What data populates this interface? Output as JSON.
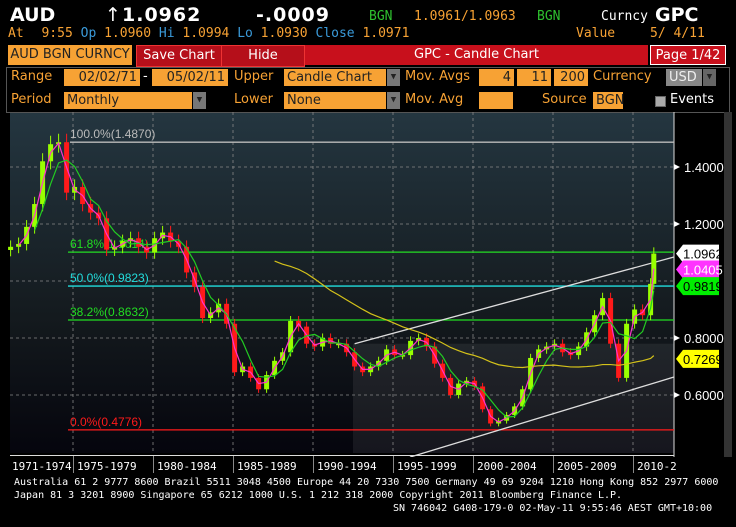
{
  "header": {
    "ticker": "AUD",
    "arrow": "↑",
    "price": "1.0962",
    "change": "-.0009",
    "source": "BGN",
    "bid_ask": "1.0961/1.0963",
    "source2": "BGN",
    "function_prefix": "Curncy",
    "function": "GPC"
  },
  "quote": {
    "at_label": "At",
    "time": "9:55",
    "op_label": "Op",
    "open": "1.0960",
    "hi_label": "Hi",
    "high": "1.0994",
    "lo_label": "Lo",
    "low": "1.0930",
    "close_label": "Close",
    "close": "1.0971",
    "value_label": "Value",
    "value_date": "5/ 4/11"
  },
  "toolbar": {
    "security": "AUD BGN CURNCY",
    "save": "Save Chart",
    "hide": "Hide",
    "title": "GPC - Candle Chart",
    "page": "Page 1/42"
  },
  "controls": {
    "range_label": "Range",
    "range_start": "02/02/71",
    "range_sep": "-",
    "range_end": "05/02/11",
    "upper_label": "Upper",
    "upper_value": "Candle Chart",
    "mov_avgs_label": "Mov. Avgs",
    "mov_avgs": [
      "4",
      "11",
      "200"
    ],
    "currency_label": "Currency",
    "currency": "USD",
    "period_label": "Period",
    "period": "Monthly",
    "lower_label": "Lower",
    "lower_value": "None",
    "mov_avg_label": "Mov. Avg",
    "mov_avg": "",
    "source_label": "Source",
    "source": "BGN",
    "events_label": "Events",
    "events_checked": false
  },
  "chart_data": {
    "type": "candlestick",
    "ylim": [
      0.4,
      1.62
    ],
    "y_ticks": [
      "1.4000",
      "1.2000",
      "0.8000",
      "0.6000"
    ],
    "x_labels": [
      "1971-1974",
      "1975-1979",
      "1980-1984",
      "1985-1989",
      "1990-1994",
      "1995-1999",
      "2000-2004",
      "2005-2009",
      "2010-2"
    ],
    "colors": {
      "up": "#99ff00",
      "down": "#ff1a1a",
      "ma_short": "#ff33cc",
      "ma_mid": "#22cc22",
      "ma_long": "#d4c21a"
    },
    "closes": [
      [
        1971.1,
        1.12
      ],
      [
        1971.6,
        1.13
      ],
      [
        1972.1,
        1.19
      ],
      [
        1972.6,
        1.27
      ],
      [
        1973.1,
        1.42
      ],
      [
        1973.6,
        1.48
      ],
      [
        1974.1,
        1.487
      ],
      [
        1974.6,
        1.31
      ],
      [
        1975.1,
        1.33
      ],
      [
        1975.6,
        1.27
      ],
      [
        1976.1,
        1.24
      ],
      [
        1976.6,
        1.22
      ],
      [
        1977.1,
        1.11
      ],
      [
        1977.6,
        1.12
      ],
      [
        1978.1,
        1.14
      ],
      [
        1978.6,
        1.15
      ],
      [
        1979.1,
        1.12
      ],
      [
        1979.6,
        1.1
      ],
      [
        1980.1,
        1.15
      ],
      [
        1980.6,
        1.17
      ],
      [
        1981.1,
        1.14
      ],
      [
        1981.6,
        1.12
      ],
      [
        1982.1,
        1.03
      ],
      [
        1982.6,
        0.98
      ],
      [
        1983.1,
        0.87
      ],
      [
        1983.6,
        0.89
      ],
      [
        1984.1,
        0.92
      ],
      [
        1984.6,
        0.85
      ],
      [
        1985.1,
        0.68
      ],
      [
        1985.6,
        0.7
      ],
      [
        1986.1,
        0.66
      ],
      [
        1986.6,
        0.62
      ],
      [
        1987.1,
        0.67
      ],
      [
        1987.6,
        0.72
      ],
      [
        1988.1,
        0.75
      ],
      [
        1988.6,
        0.86
      ],
      [
        1989.1,
        0.84
      ],
      [
        1989.6,
        0.78
      ],
      [
        1990.1,
        0.77
      ],
      [
        1990.6,
        0.8
      ],
      [
        1991.1,
        0.78
      ],
      [
        1991.6,
        0.78
      ],
      [
        1992.1,
        0.75
      ],
      [
        1992.6,
        0.7
      ],
      [
        1993.1,
        0.68
      ],
      [
        1993.6,
        0.7
      ],
      [
        1994.1,
        0.72
      ],
      [
        1994.6,
        0.76
      ],
      [
        1995.1,
        0.74
      ],
      [
        1995.6,
        0.74
      ],
      [
        1996.1,
        0.79
      ],
      [
        1996.6,
        0.8
      ],
      [
        1997.1,
        0.77
      ],
      [
        1997.6,
        0.71
      ],
      [
        1998.1,
        0.66
      ],
      [
        1998.6,
        0.6
      ],
      [
        1999.1,
        0.64
      ],
      [
        1999.6,
        0.65
      ],
      [
        2000.1,
        0.63
      ],
      [
        2000.6,
        0.55
      ],
      [
        2001.1,
        0.5
      ],
      [
        2001.6,
        0.51
      ],
      [
        2002.1,
        0.53
      ],
      [
        2002.6,
        0.56
      ],
      [
        2003.1,
        0.62
      ],
      [
        2003.6,
        0.73
      ],
      [
        2004.1,
        0.76
      ],
      [
        2004.6,
        0.77
      ],
      [
        2005.1,
        0.78
      ],
      [
        2005.6,
        0.75
      ],
      [
        2006.1,
        0.74
      ],
      [
        2006.6,
        0.77
      ],
      [
        2007.1,
        0.82
      ],
      [
        2007.6,
        0.88
      ],
      [
        2008.1,
        0.94
      ],
      [
        2008.6,
        0.78
      ],
      [
        2009.1,
        0.66
      ],
      [
        2009.6,
        0.85
      ],
      [
        2010.1,
        0.9
      ],
      [
        2010.6,
        0.88
      ],
      [
        2011.1,
        0.99
      ],
      [
        2011.3,
        1.0962
      ]
    ],
    "fib_levels": [
      {
        "label": "100.0%(1.4870)",
        "value": 1.487,
        "color": "#bbbbbb"
      },
      {
        "label": "61.8%(1.1014)",
        "value": 1.1014,
        "color": "#22dd22"
      },
      {
        "label": "50.0%(0.9823)",
        "value": 0.9823,
        "color": "#22dddd"
      },
      {
        "label": "38.2%(0.8632)",
        "value": 0.8632,
        "color": "#22dd22"
      },
      {
        "label": "0.0%(0.4776)",
        "value": 0.4776,
        "color": "#ff1a1a"
      }
    ],
    "trend_channel": {
      "upper": [
        [
          1992.6,
          0.78
        ],
        [
          2012.56,
          1.084
        ]
      ],
      "lower": [
        [
          1996.06,
          0.382
        ],
        [
          2012.56,
          0.663
        ]
      ]
    },
    "last_values": [
      {
        "value": "1.0962",
        "color": "#ffffff"
      },
      {
        "value": "1.0405",
        "color": "#ff33ff"
      },
      {
        "value": "0.9819",
        "color": "#00ee00"
      },
      {
        "value": "0.7269",
        "color": "#ffff00"
      }
    ]
  },
  "footer": {
    "line1": "Australia 61 2 9777 8600 Brazil 5511 3048 4500 Europe 44 20 7330 7500 Germany 49 69 9204 1210 Hong Kong 852 2977 6000",
    "line2": "Japan 81 3 3201 8900       Singapore 65 6212 1000       U.S. 1 212 318 2000        Copyright 2011 Bloomberg Finance L.P.",
    "line3": "SN 746042 G408-179-0 02-May-11  9:55:46 AEST GMT+10:00"
  }
}
